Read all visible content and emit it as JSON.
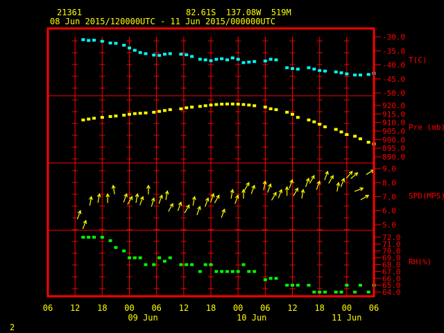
{
  "header": {
    "station_id": "21361",
    "location": "82.61S  137.08W  519M",
    "time_range": "08 Jun 2015/120000UTC - 11 Jun 2015/000000UTC"
  },
  "footer_page": "2",
  "colors": {
    "frame": "#ff0000",
    "temp": "#00ffff",
    "pressure": "#ffff00",
    "wind": "#ffff00",
    "rh": "#00ff00",
    "text": "#ffff00",
    "ylabel": "#ff0000",
    "xlabel": "#ffff00"
  },
  "chart_data": {
    "type": "scatter",
    "x_axis": {
      "ticks": [
        "06",
        "12",
        "18",
        "00",
        "06",
        "12",
        "18",
        "00",
        "06",
        "12",
        "18",
        "00",
        "06"
      ],
      "day_labels": [
        {
          "label": "09 Jun",
          "at": 3.5
        },
        {
          "label": "10 Jun",
          "at": 7.5
        },
        {
          "label": "11 Jun",
          "at": 11.0
        }
      ],
      "xlim": [
        0,
        12
      ]
    },
    "panels": [
      {
        "name": "temp",
        "ylabel": "T(C)",
        "ylim": [
          -50,
          -28
        ],
        "yticks": [
          "-30.0",
          "-35.0",
          "-40.0",
          "-45.0",
          "-50.0"
        ],
        "ytick_values": [
          -30,
          -35,
          -40,
          -45,
          -50
        ],
        "x": [
          1.3,
          1.5,
          1.7,
          2.0,
          2.3,
          2.5,
          2.8,
          3.0,
          3.2,
          3.4,
          3.6,
          3.9,
          4.1,
          4.3,
          4.5,
          4.9,
          5.1,
          5.3,
          5.6,
          5.8,
          6.0,
          6.2,
          6.4,
          6.6,
          6.8,
          7.0,
          7.2,
          7.4,
          7.6,
          8.0,
          8.2,
          8.4,
          8.8,
          9.0,
          9.2,
          9.6,
          9.8,
          10.0,
          10.2,
          10.6,
          10.8,
          11.0,
          11.3,
          11.5,
          11.8,
          12.0
        ],
        "y": [
          -31.0,
          -31.3,
          -31.2,
          -31.6,
          -32.2,
          -32.3,
          -33.0,
          -34.0,
          -34.8,
          -35.6,
          -36.0,
          -36.5,
          -36.6,
          -36.2,
          -36.0,
          -36.2,
          -36.4,
          -37.0,
          -38.0,
          -38.2,
          -38.5,
          -38.0,
          -37.8,
          -38.2,
          -37.5,
          -38.0,
          -39.2,
          -39.0,
          -38.8,
          -38.6,
          -38.0,
          -38.2,
          -41.0,
          -41.3,
          -41.5,
          -41.0,
          -41.5,
          -42.0,
          -42.2,
          -42.5,
          -42.8,
          -43.2,
          -43.6,
          -43.6,
          -43.4,
          -43.0
        ]
      },
      {
        "name": "pressure",
        "ylabel": "Pre (mb)",
        "ylim": [
          888,
          924
        ],
        "yticks": [
          "920.0",
          "915.0",
          "910.0",
          "905.0",
          "900.0",
          "895.0",
          "890.0"
        ],
        "ytick_values": [
          920,
          915,
          910,
          905,
          900,
          895,
          890
        ],
        "x": [
          1.3,
          1.5,
          1.7,
          2.0,
          2.3,
          2.5,
          2.8,
          3.0,
          3.2,
          3.4,
          3.6,
          3.9,
          4.1,
          4.3,
          4.5,
          4.9,
          5.1,
          5.3,
          5.6,
          5.8,
          6.0,
          6.2,
          6.4,
          6.6,
          6.8,
          7.0,
          7.2,
          7.4,
          7.6,
          8.0,
          8.2,
          8.4,
          8.8,
          9.0,
          9.2,
          9.6,
          9.8,
          10.0,
          10.2,
          10.6,
          10.8,
          11.0,
          11.3,
          11.5,
          11.8,
          12.0
        ],
        "y": [
          911.5,
          912.0,
          912.5,
          913.0,
          913.5,
          913.8,
          914.3,
          914.8,
          915.2,
          915.4,
          915.6,
          916.0,
          916.5,
          917.0,
          917.5,
          918.0,
          918.6,
          919.0,
          919.4,
          919.8,
          920.2,
          920.5,
          920.7,
          920.8,
          920.8,
          920.7,
          920.5,
          920.2,
          919.8,
          919.0,
          918.0,
          917.5,
          916.0,
          914.8,
          913.0,
          911.5,
          910.4,
          909.0,
          907.5,
          906.0,
          904.5,
          903.0,
          902.0,
          900.5,
          898.5,
          897.5
        ]
      },
      {
        "name": "wind",
        "ylabel": "SPD(MPS)",
        "ylim": [
          4.8,
          9.2
        ],
        "yticks": [
          "9.0",
          "8.0",
          "7.0",
          "6.0",
          "5.0"
        ],
        "ytick_values": [
          9,
          8,
          7,
          6,
          5
        ],
        "x": [
          1.2,
          1.4,
          1.6,
          1.9,
          2.2,
          2.4,
          2.9,
          3.1,
          3.3,
          3.5,
          3.7,
          3.9,
          4.2,
          4.4,
          4.6,
          4.9,
          5.2,
          5.4,
          5.6,
          5.9,
          6.1,
          6.3,
          6.5,
          6.8,
          7.0,
          7.2,
          7.4,
          7.6,
          8.0,
          8.2,
          8.4,
          8.6,
          8.8,
          9.0,
          9.2,
          9.4,
          9.6,
          9.8,
          10.0,
          10.3,
          10.5,
          10.7,
          10.9,
          11.2,
          11.4,
          11.6,
          11.8,
          12.0
        ],
        "y": [
          6.0,
          5.3,
          7.0,
          7.2,
          7.2,
          7.8,
          7.2,
          7.0,
          7.2,
          7.0,
          7.8,
          6.9,
          7.1,
          7.4,
          6.5,
          6.6,
          6.4,
          7.0,
          6.3,
          6.9,
          7.2,
          7.1,
          6.1,
          7.5,
          7.1,
          7.5,
          8.0,
          7.8,
          8.1,
          7.9,
          7.3,
          7.5,
          7.7,
          8.2,
          7.6,
          7.5,
          8.3,
          8.5,
          8.1,
          8.8,
          8.5,
          8.0,
          8.3,
          8.8,
          8.7,
          7.6,
          7.1,
          8.9
        ],
        "direction_deg": [
          200,
          200,
          190,
          190,
          180,
          170,
          200,
          210,
          190,
          200,
          180,
          195,
          200,
          190,
          210,
          200,
          210,
          190,
          200,
          200,
          200,
          210,
          200,
          190,
          200,
          180,
          210,
          200,
          190,
          200,
          210,
          200,
          180,
          200,
          210,
          190,
          200,
          210,
          200,
          200,
          210,
          190,
          200,
          220,
          230,
          250,
          240,
          240
        ]
      },
      {
        "name": "rh",
        "ylabel": "RH(%)",
        "ylim": [
          63.8,
          72.6
        ],
        "yticks": [
          "72.0",
          "71.0",
          "70.0",
          "69.0",
          "68.0",
          "67.0",
          "66.0",
          "65.0",
          "64.0"
        ],
        "ytick_values": [
          72,
          71,
          70,
          69,
          68,
          67,
          66,
          65,
          64
        ],
        "x": [
          1.3,
          1.5,
          1.7,
          2.0,
          2.3,
          2.5,
          2.8,
          3.0,
          3.2,
          3.4,
          3.6,
          3.9,
          4.1,
          4.3,
          4.5,
          4.9,
          5.1,
          5.3,
          5.6,
          5.8,
          6.0,
          6.2,
          6.4,
          6.6,
          6.8,
          7.0,
          7.2,
          7.4,
          7.6,
          8.0,
          8.2,
          8.4,
          8.8,
          9.0,
          9.2,
          9.6,
          9.8,
          10.0,
          10.2,
          10.6,
          10.8,
          11.0,
          11.3,
          11.5,
          11.8,
          12.0
        ],
        "y": [
          72,
          72,
          72,
          72,
          71.5,
          70.5,
          70,
          69,
          69,
          69,
          68,
          68,
          69,
          68.5,
          69,
          68,
          68,
          68,
          67,
          68,
          68,
          67,
          67,
          67,
          67,
          67,
          68,
          67,
          67,
          65.8,
          66,
          66,
          65,
          65,
          65,
          65,
          64,
          64,
          64,
          64,
          64,
          65,
          64,
          65,
          64,
          65
        ]
      }
    ]
  }
}
